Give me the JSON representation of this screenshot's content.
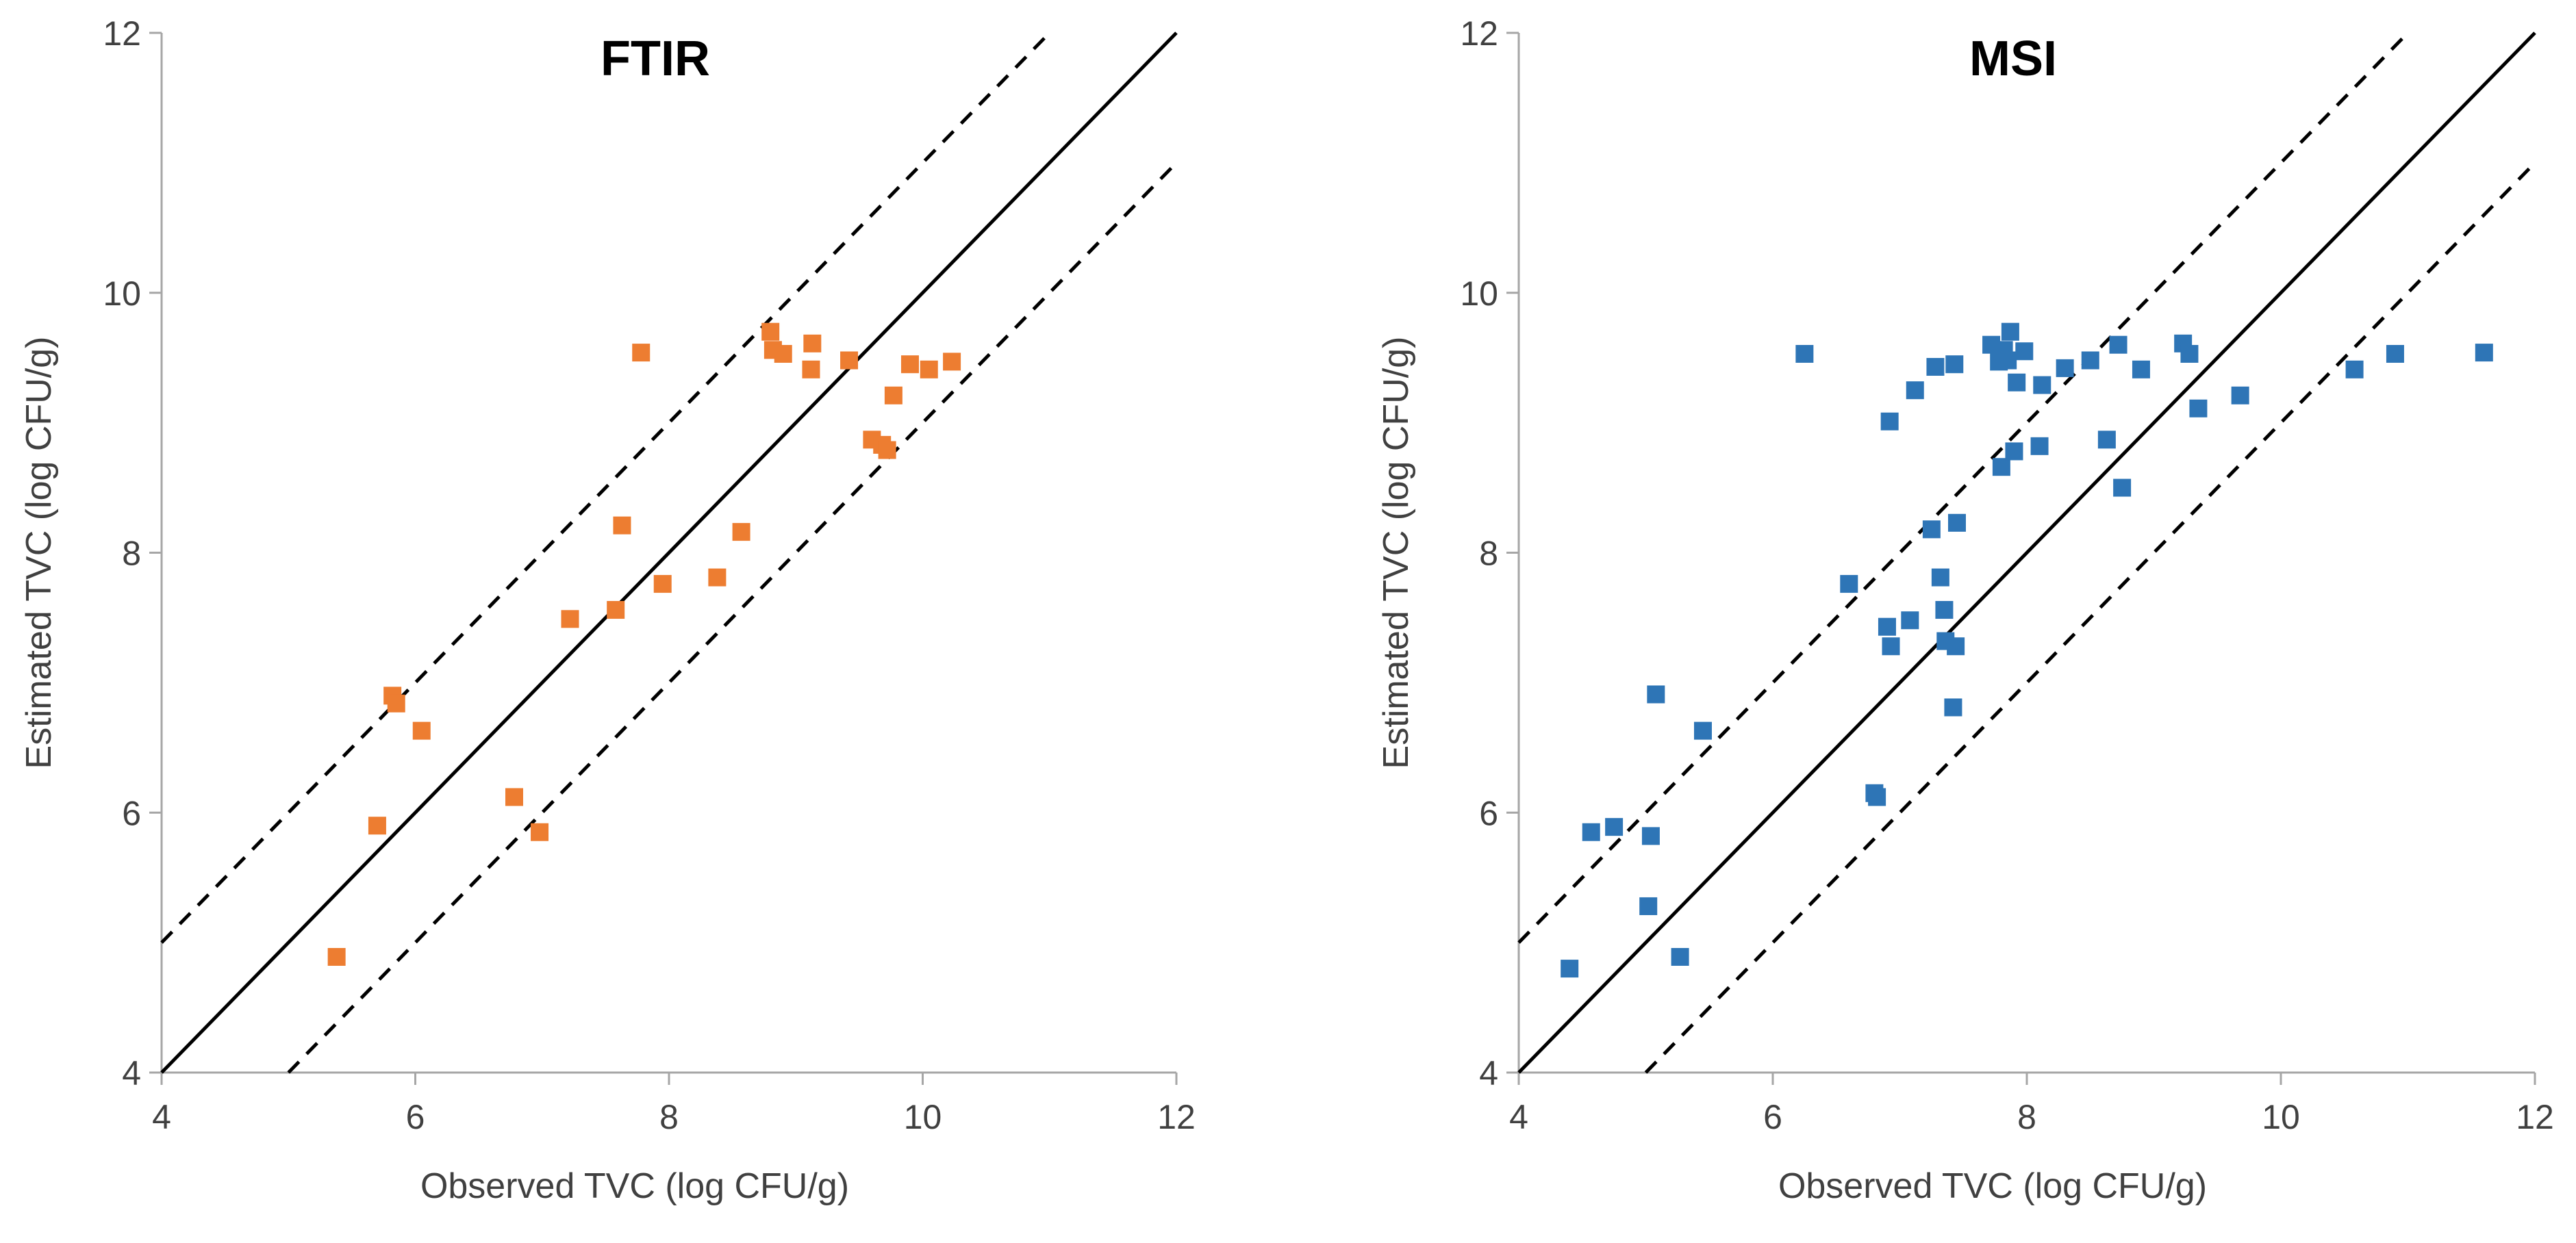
{
  "chart_data": [
    {
      "type": "scatter",
      "title": "FTIR",
      "xlabel": "Observed TVC (log CFU/g)",
      "ylabel": "Estimated TVC (log CFU/g)",
      "xlim": [
        4,
        12
      ],
      "ylim": [
        4,
        12
      ],
      "xticks": [
        "4",
        "6",
        "8",
        "10",
        "12"
      ],
      "yticks": [
        "4",
        "6",
        "8",
        "10",
        "12"
      ],
      "marker_color": "#ED7D31",
      "reference_lines": [
        {
          "name": "y = x",
          "style": "solid",
          "offset": 0
        },
        {
          "name": "y = x + 1",
          "style": "dashed",
          "offset": 1
        },
        {
          "name": "y = x - 1",
          "style": "dashed",
          "offset": -1
        }
      ],
      "points": [
        [
          5.38,
          4.89
        ],
        [
          5.7,
          5.9
        ],
        [
          5.82,
          6.9
        ],
        [
          5.85,
          6.84
        ],
        [
          6.05,
          6.63
        ],
        [
          6.78,
          6.12
        ],
        [
          6.98,
          5.85
        ],
        [
          7.22,
          7.49
        ],
        [
          7.58,
          7.56
        ],
        [
          7.63,
          8.21
        ],
        [
          7.78,
          9.54
        ],
        [
          7.95,
          7.76
        ],
        [
          8.38,
          7.81
        ],
        [
          8.57,
          8.16
        ],
        [
          8.8,
          9.7
        ],
        [
          8.82,
          9.56
        ],
        [
          8.9,
          9.53
        ],
        [
          9.12,
          9.41
        ],
        [
          9.13,
          9.61
        ],
        [
          9.42,
          9.48
        ],
        [
          9.6,
          8.87
        ],
        [
          9.68,
          8.83
        ],
        [
          9.72,
          8.79
        ],
        [
          9.77,
          9.21
        ],
        [
          9.9,
          9.45
        ],
        [
          10.05,
          9.41
        ],
        [
          10.23,
          9.47
        ]
      ]
    },
    {
      "type": "scatter",
      "title": "MSI",
      "xlabel": "Observed TVC (log CFU/g)",
      "ylabel": "Estimated TVC (log CFU/g)",
      "xlim": [
        4,
        12
      ],
      "ylim": [
        4,
        12
      ],
      "xticks": [
        "4",
        "6",
        "8",
        "10",
        "12"
      ],
      "yticks": [
        "4",
        "6",
        "8",
        "10",
        "12"
      ],
      "marker_color": "#2E75B6",
      "reference_lines": [
        {
          "name": "y = x",
          "style": "solid",
          "offset": 0
        },
        {
          "name": "y = x + 1",
          "style": "dashed",
          "offset": 1
        },
        {
          "name": "y = x - 1",
          "style": "dashed",
          "offset": -1
        }
      ],
      "points": [
        [
          4.4,
          4.8
        ],
        [
          4.57,
          5.85
        ],
        [
          4.75,
          5.89
        ],
        [
          5.02,
          5.28
        ],
        [
          5.04,
          5.82
        ],
        [
          5.08,
          6.91
        ],
        [
          5.27,
          4.89
        ],
        [
          5.45,
          6.63
        ],
        [
          6.25,
          9.53
        ],
        [
          6.6,
          7.76
        ],
        [
          6.8,
          6.15
        ],
        [
          6.82,
          6.12
        ],
        [
          6.9,
          7.43
        ],
        [
          6.92,
          9.01
        ],
        [
          6.93,
          7.28
        ],
        [
          7.08,
          7.48
        ],
        [
          7.12,
          9.25
        ],
        [
          7.25,
          8.18
        ],
        [
          7.28,
          9.43
        ],
        [
          7.32,
          7.81
        ],
        [
          7.35,
          7.56
        ],
        [
          7.36,
          7.32
        ],
        [
          7.42,
          6.81
        ],
        [
          7.43,
          9.45
        ],
        [
          7.44,
          7.28
        ],
        [
          7.45,
          8.23
        ],
        [
          7.72,
          9.6
        ],
        [
          7.78,
          9.47
        ],
        [
          7.8,
          8.66
        ],
        [
          7.82,
          9.56
        ],
        [
          7.85,
          9.48
        ],
        [
          7.87,
          9.7
        ],
        [
          7.9,
          8.78
        ],
        [
          7.92,
          9.31
        ],
        [
          7.98,
          9.55
        ],
        [
          8.1,
          8.82
        ],
        [
          8.12,
          9.29
        ],
        [
          8.3,
          9.42
        ],
        [
          8.5,
          9.48
        ],
        [
          8.63,
          8.87
        ],
        [
          8.72,
          9.6
        ],
        [
          8.75,
          8.5
        ],
        [
          8.9,
          9.41
        ],
        [
          9.23,
          9.61
        ],
        [
          9.28,
          9.53
        ],
        [
          9.35,
          9.11
        ],
        [
          9.68,
          9.21
        ],
        [
          10.58,
          9.41
        ],
        [
          10.9,
          9.53
        ],
        [
          11.6,
          9.54
        ]
      ]
    }
  ]
}
